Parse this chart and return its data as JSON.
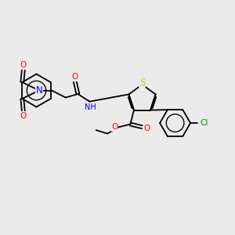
{
  "bg_color": "#ebebeb",
  "bond_color": "#000000",
  "atom_colors": {
    "O": "#ff0000",
    "N": "#0000ff",
    "S": "#cccc00",
    "Cl": "#008800",
    "C": "#000000",
    "H": "#777777"
  },
  "font_size": 7.5,
  "line_width": 1.3
}
